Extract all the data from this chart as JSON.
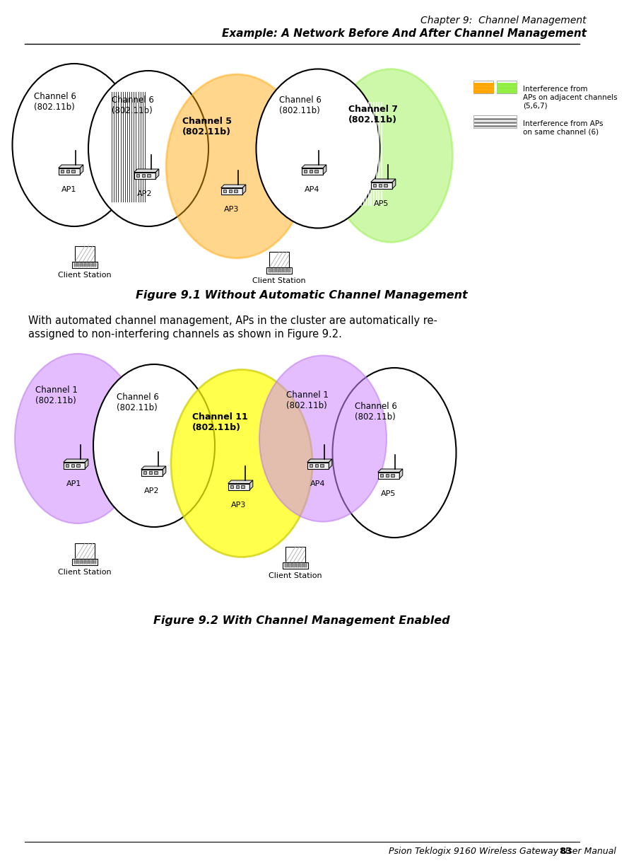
{
  "title_line1": "Chapter 9:  Channel Management",
  "title_line2": "Example: A Network Before And After Channel Management",
  "fig1_caption": "Figure 9.1 Without Automatic Channel Management",
  "fig2_caption": "Figure 9.2 With Channel Management Enabled",
  "body_text_1": "With automated channel management, APs in the cluster are automatically re-",
  "body_text_2": "assigned to non-interfering channels as shown in Figure 9.2.",
  "footer_text": "Psion Teklogix 9160 Wireless Gateway User Manual",
  "footer_page": "83",
  "legend_adj_text": "Interference from\nAPs on adjacent channels\n(5,6,7)",
  "legend_same_text": "Interference from APs\non same channel (6)",
  "orange": "#FFA500",
  "green": "#90EE40",
  "purple": "#CC88FF",
  "yellow": "#FFFF00",
  "white": "#FFFFFF",
  "black": "#000000",
  "gray": "#888888"
}
